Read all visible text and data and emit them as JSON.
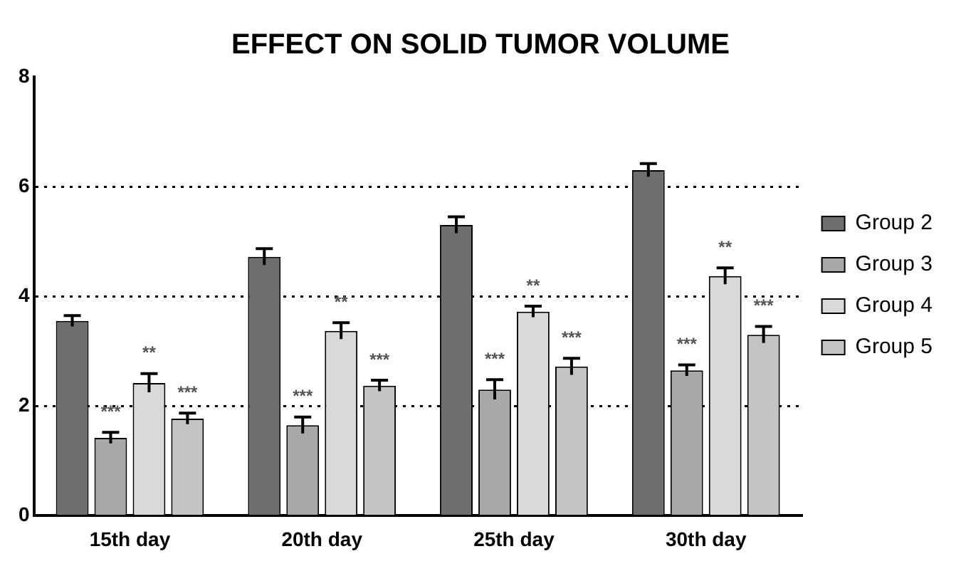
{
  "chart_data": {
    "type": "bar",
    "title": "EFFECT ON SOLID TUMOR VOLUME",
    "categories": [
      "15th day",
      "20th day",
      "25th day",
      "30th day"
    ],
    "series": [
      {
        "name": "Group 2",
        "color": "#6e6e6e",
        "values": [
          3.55,
          4.72,
          5.3,
          6.3
        ],
        "errors": [
          0.1,
          0.15,
          0.15,
          0.12
        ]
      },
      {
        "name": "Group 3",
        "color": "#a8a8a8",
        "values": [
          1.42,
          1.65,
          2.3,
          2.65
        ],
        "errors": [
          0.1,
          0.15,
          0.18,
          0.1
        ],
        "value_labels": [
          "***",
          "***",
          "***",
          "***"
        ]
      },
      {
        "name": "Group 4",
        "color": "#d9d9d9",
        "values": [
          2.42,
          3.37,
          3.72,
          4.37
        ],
        "errors": [
          0.17,
          0.15,
          0.1,
          0.15
        ],
        "value_labels": [
          "**",
          "**",
          "**",
          "**"
        ]
      },
      {
        "name": "Group 5",
        "color": "#c4c4c4",
        "values": [
          1.77,
          2.37,
          2.72,
          3.3
        ],
        "errors": [
          0.1,
          0.1,
          0.15,
          0.15
        ],
        "value_labels": [
          "***",
          "***",
          "***",
          "***"
        ]
      }
    ],
    "ylim": [
      0,
      8
    ],
    "yticks": [
      0,
      2,
      4,
      6,
      8
    ],
    "grid": "y",
    "legend": "right"
  }
}
